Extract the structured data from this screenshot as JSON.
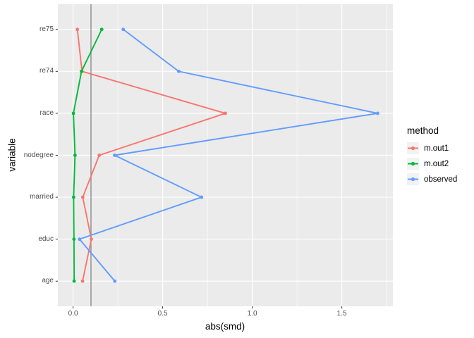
{
  "chart_data": {
    "type": "line",
    "description": "Covariate balance (love) plot: absolute standardized mean differences by variable and method",
    "title": "",
    "xlabel": "abs(smd)",
    "ylabel": "variable",
    "legend_title": "method",
    "legend_position": "right",
    "grid": "on",
    "categories": [
      "re75",
      "re74",
      "race",
      "nodegree",
      "married",
      "educ",
      "age"
    ],
    "x_ticks": [
      0.0,
      0.5,
      1.0,
      1.5
    ],
    "x_tick_labels": [
      "0.0",
      "0.5",
      "1.0",
      "1.5"
    ],
    "x_minor_ticks": [
      0.25,
      0.75,
      1.25,
      1.75
    ],
    "xlim": [
      -0.085,
      1.785
    ],
    "ylim_expansion": [
      0.4,
      7.6
    ],
    "reference_line_x": 0.1,
    "series": [
      {
        "name": "m.out1",
        "color": "#F8766D",
        "values": [
          0.024,
          0.05,
          0.85,
          0.146,
          0.054,
          0.102,
          0.053
        ]
      },
      {
        "name": "m.out2",
        "color": "#00BA38",
        "values": [
          0.16,
          0.047,
          0.002,
          0.011,
          0.003,
          0.005,
          0.006
        ]
      },
      {
        "name": "observed",
        "color": "#619CFF",
        "values": [
          0.28,
          0.59,
          1.7,
          0.232,
          0.717,
          0.036,
          0.233
        ]
      }
    ],
    "colors": {
      "panel_background": "#EBEBEB",
      "gridline": "#FFFFFF",
      "reference_line": "#8E8E8E",
      "tick_mark": "#333333",
      "tick_label": "#4D4D4D",
      "axis_title": "#000000",
      "legend_key_fill": "#F2F2F2"
    }
  }
}
